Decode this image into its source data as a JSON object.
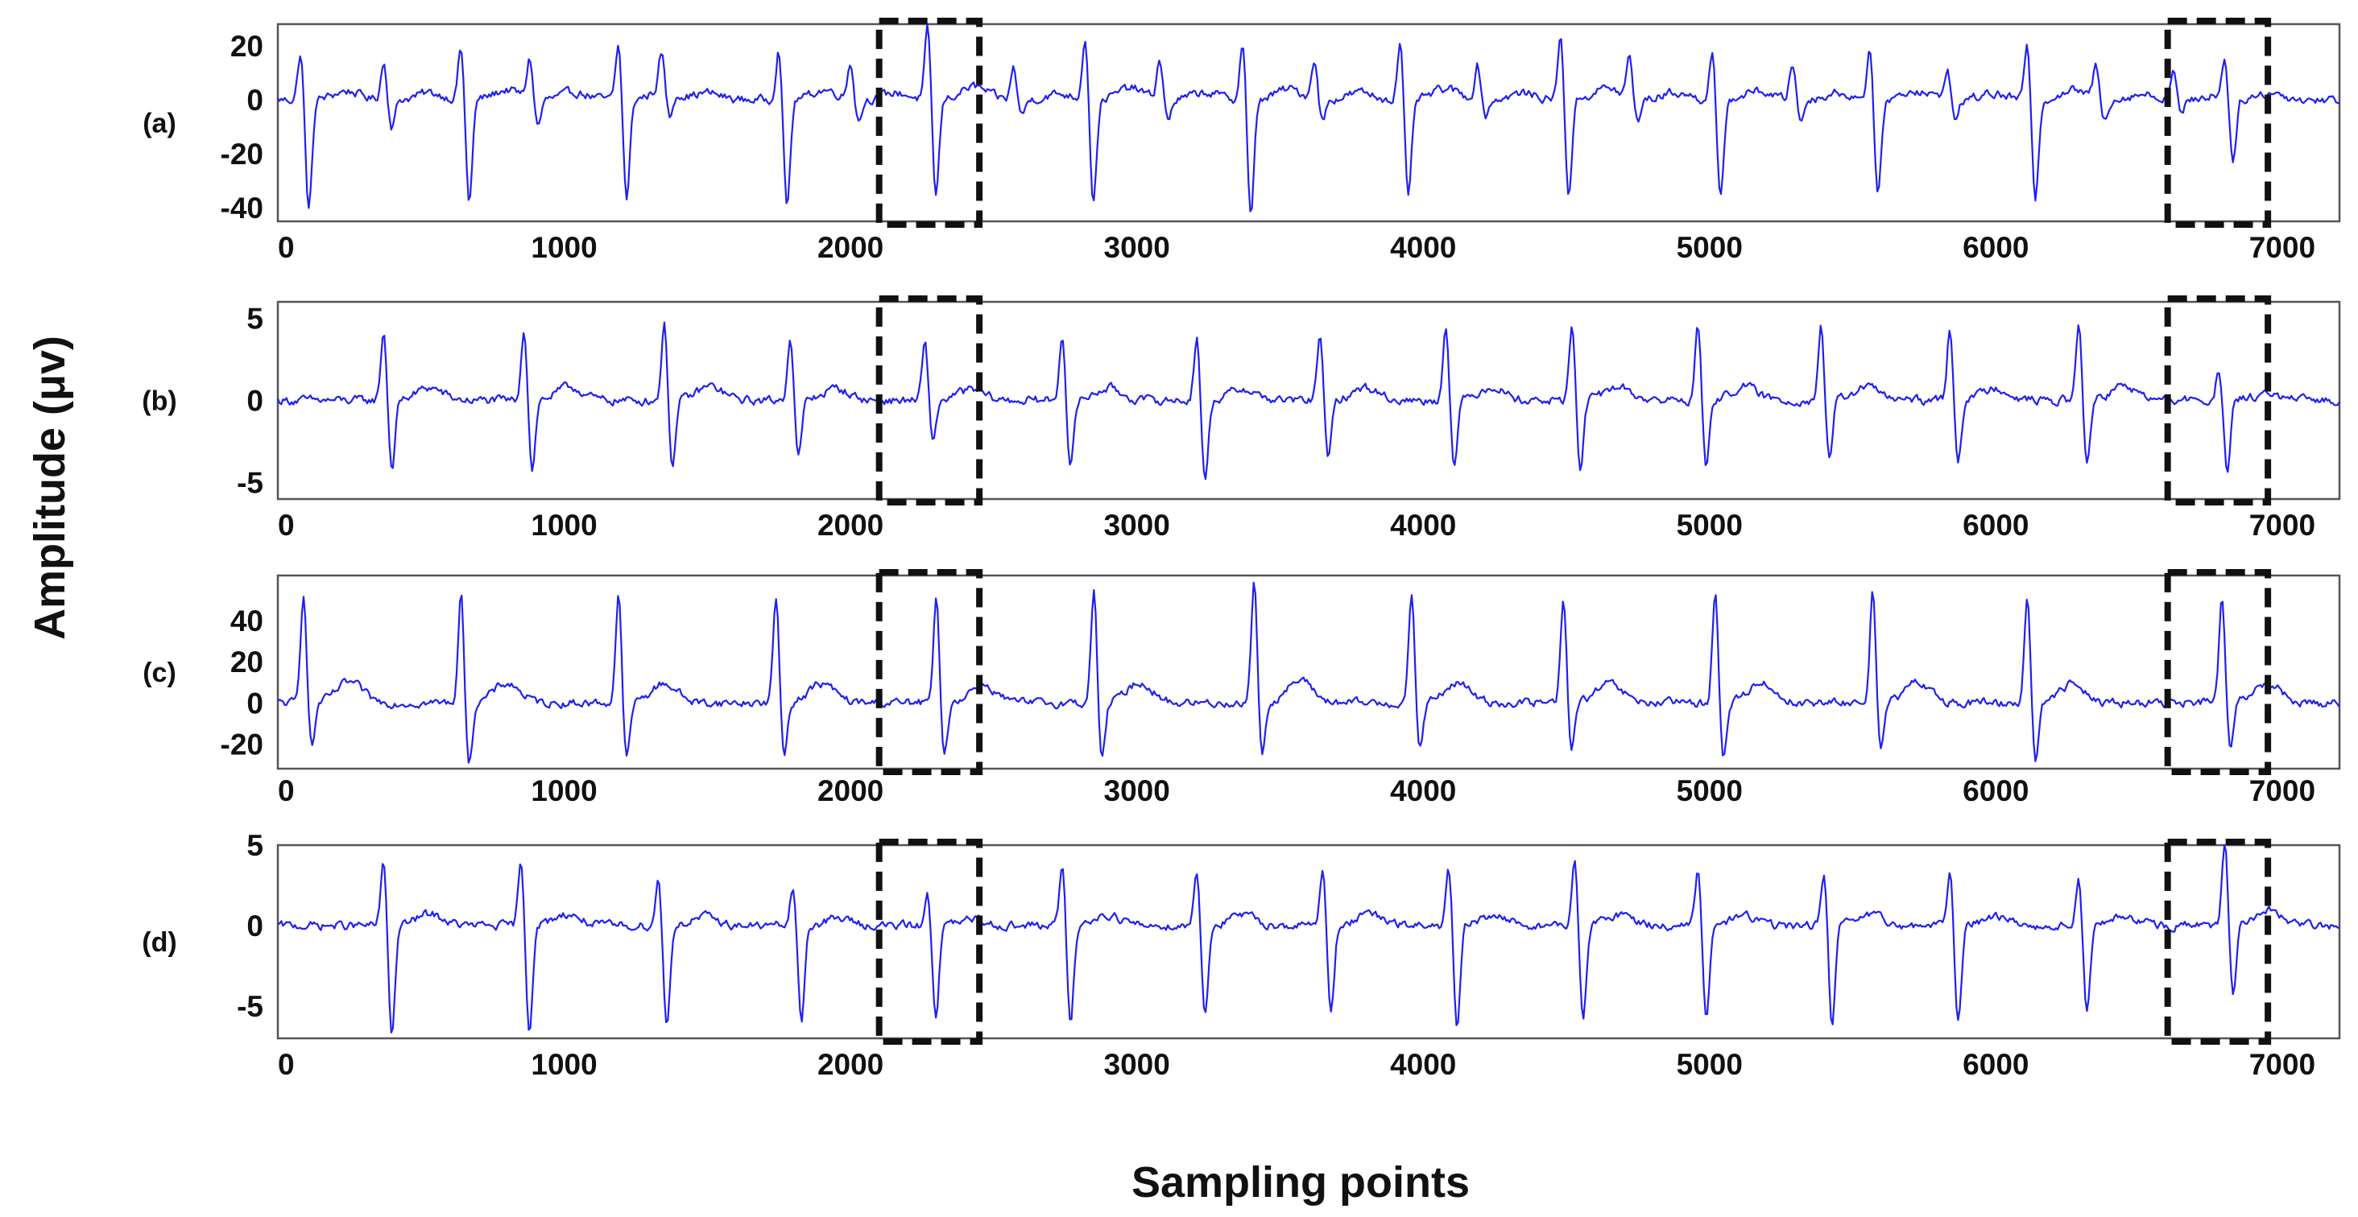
{
  "chart_data": {
    "type": "line",
    "xlabel": "Sampling points",
    "ylabel": "Amplitude (μv)",
    "xlim": [
      0,
      7200
    ],
    "xticks": [
      0,
      1000,
      2000,
      3000,
      4000,
      5000,
      6000,
      7000
    ],
    "grid": false,
    "highlight_boxes_x": [
      [
        2100,
        2450
      ],
      [
        6600,
        6950
      ]
    ],
    "colors": {
      "signal": "#1f1ff2",
      "frame": "#555555",
      "box": "#111111"
    },
    "panels": [
      {
        "label": "(a)",
        "ylim": [
          -45,
          28
        ],
        "yticks": [
          20,
          0,
          -20,
          -40
        ],
        "beats": [
          {
            "x": 80,
            "up": 18,
            "down": -41
          },
          {
            "x": 370,
            "up": 14,
            "down": -10
          },
          {
            "x": 640,
            "up": 20,
            "down": -38
          },
          {
            "x": 880,
            "up": 15,
            "down": -10
          },
          {
            "x": 1190,
            "up": 21,
            "down": -37
          },
          {
            "x": 1340,
            "up": 14,
            "down": -10
          },
          {
            "x": 1750,
            "up": 20,
            "down": -40
          },
          {
            "x": 2000,
            "up": 14,
            "down": -8
          },
          {
            "x": 2270,
            "up": 27,
            "down": -36
          },
          {
            "x": 2570,
            "up": 12,
            "down": -6
          },
          {
            "x": 2820,
            "up": 24,
            "down": -38
          },
          {
            "x": 3080,
            "up": 15,
            "down": -8
          },
          {
            "x": 3370,
            "up": 22,
            "down": -44
          },
          {
            "x": 3620,
            "up": 15,
            "down": -8
          },
          {
            "x": 3920,
            "up": 22,
            "down": -37
          },
          {
            "x": 4190,
            "up": 13,
            "down": -6
          },
          {
            "x": 4480,
            "up": 24,
            "down": -35
          },
          {
            "x": 4720,
            "up": 15,
            "down": -8
          },
          {
            "x": 5010,
            "up": 18,
            "down": -38
          },
          {
            "x": 5290,
            "up": 14,
            "down": -8
          },
          {
            "x": 5560,
            "up": 20,
            "down": -37
          },
          {
            "x": 5830,
            "up": 12,
            "down": -8
          },
          {
            "x": 6110,
            "up": 20,
            "down": -36
          },
          {
            "x": 6350,
            "up": 12,
            "down": -8
          },
          {
            "x": 6620,
            "up": 11,
            "down": -6
          },
          {
            "x": 6800,
            "up": 14,
            "down": -24
          }
        ]
      },
      {
        "label": "(b)",
        "ylim": [
          -6,
          6
        ],
        "yticks": [
          5,
          0,
          -5
        ],
        "beats": [
          {
            "x": 370,
            "up": 4.3,
            "down": -4.2
          },
          {
            "x": 860,
            "up": 4.5,
            "down": -4.2
          },
          {
            "x": 1350,
            "up": 4.7,
            "down": -4.0
          },
          {
            "x": 1790,
            "up": 4.0,
            "down": -3.5
          },
          {
            "x": 2260,
            "up": 3.5,
            "down": -2.5
          },
          {
            "x": 2740,
            "up": 4.2,
            "down": -4.2
          },
          {
            "x": 3210,
            "up": 4.0,
            "down": -5.0
          },
          {
            "x": 3640,
            "up": 4.3,
            "down": -3.8
          },
          {
            "x": 4080,
            "up": 4.7,
            "down": -4.0
          },
          {
            "x": 4520,
            "up": 4.6,
            "down": -4.2
          },
          {
            "x": 4960,
            "up": 4.7,
            "down": -4.2
          },
          {
            "x": 5390,
            "up": 4.6,
            "down": -3.8
          },
          {
            "x": 5840,
            "up": 4.5,
            "down": -3.6
          },
          {
            "x": 6290,
            "up": 4.6,
            "down": -3.8
          },
          {
            "x": 6780,
            "up": 2.0,
            "down": -4.5
          }
        ]
      },
      {
        "label": "(c)",
        "ylim": [
          -32,
          62
        ],
        "yticks": [
          40,
          20,
          0,
          -20
        ],
        "beats": [
          {
            "x": 90,
            "up": 55,
            "down": -22
          },
          {
            "x": 640,
            "up": 53,
            "down": -30
          },
          {
            "x": 1190,
            "up": 53,
            "down": -28
          },
          {
            "x": 1740,
            "up": 52,
            "down": -25
          },
          {
            "x": 2300,
            "up": 50,
            "down": -25
          },
          {
            "x": 2850,
            "up": 55,
            "down": -28
          },
          {
            "x": 3410,
            "up": 60,
            "down": -25
          },
          {
            "x": 3960,
            "up": 53,
            "down": -23
          },
          {
            "x": 4490,
            "up": 50,
            "down": -22
          },
          {
            "x": 5020,
            "up": 55,
            "down": -28
          },
          {
            "x": 5570,
            "up": 55,
            "down": -25
          },
          {
            "x": 6110,
            "up": 53,
            "down": -28
          },
          {
            "x": 6790,
            "up": 52,
            "down": -22
          }
        ]
      },
      {
        "label": "(d)",
        "ylim": [
          -7,
          5
        ],
        "yticks": [
          5,
          0,
          -5
        ],
        "beats": [
          {
            "x": 370,
            "up": 4.0,
            "down": -6.8
          },
          {
            "x": 850,
            "up": 4.0,
            "down": -6.5
          },
          {
            "x": 1330,
            "up": 3.0,
            "down": -6.3
          },
          {
            "x": 1800,
            "up": 2.5,
            "down": -6.0
          },
          {
            "x": 2270,
            "up": 2.0,
            "down": -5.5
          },
          {
            "x": 2740,
            "up": 3.8,
            "down": -6.3
          },
          {
            "x": 3210,
            "up": 3.5,
            "down": -5.5
          },
          {
            "x": 3650,
            "up": 3.8,
            "down": -5.5
          },
          {
            "x": 4090,
            "up": 3.5,
            "down": -6.5
          },
          {
            "x": 4530,
            "up": 4.0,
            "down": -5.8
          },
          {
            "x": 4960,
            "up": 3.5,
            "down": -6.0
          },
          {
            "x": 5400,
            "up": 3.5,
            "down": -6.2
          },
          {
            "x": 5840,
            "up": 3.5,
            "down": -6.0
          },
          {
            "x": 6290,
            "up": 3.0,
            "down": -5.5
          },
          {
            "x": 6800,
            "up": 5.0,
            "down": -4.2
          }
        ]
      }
    ]
  }
}
